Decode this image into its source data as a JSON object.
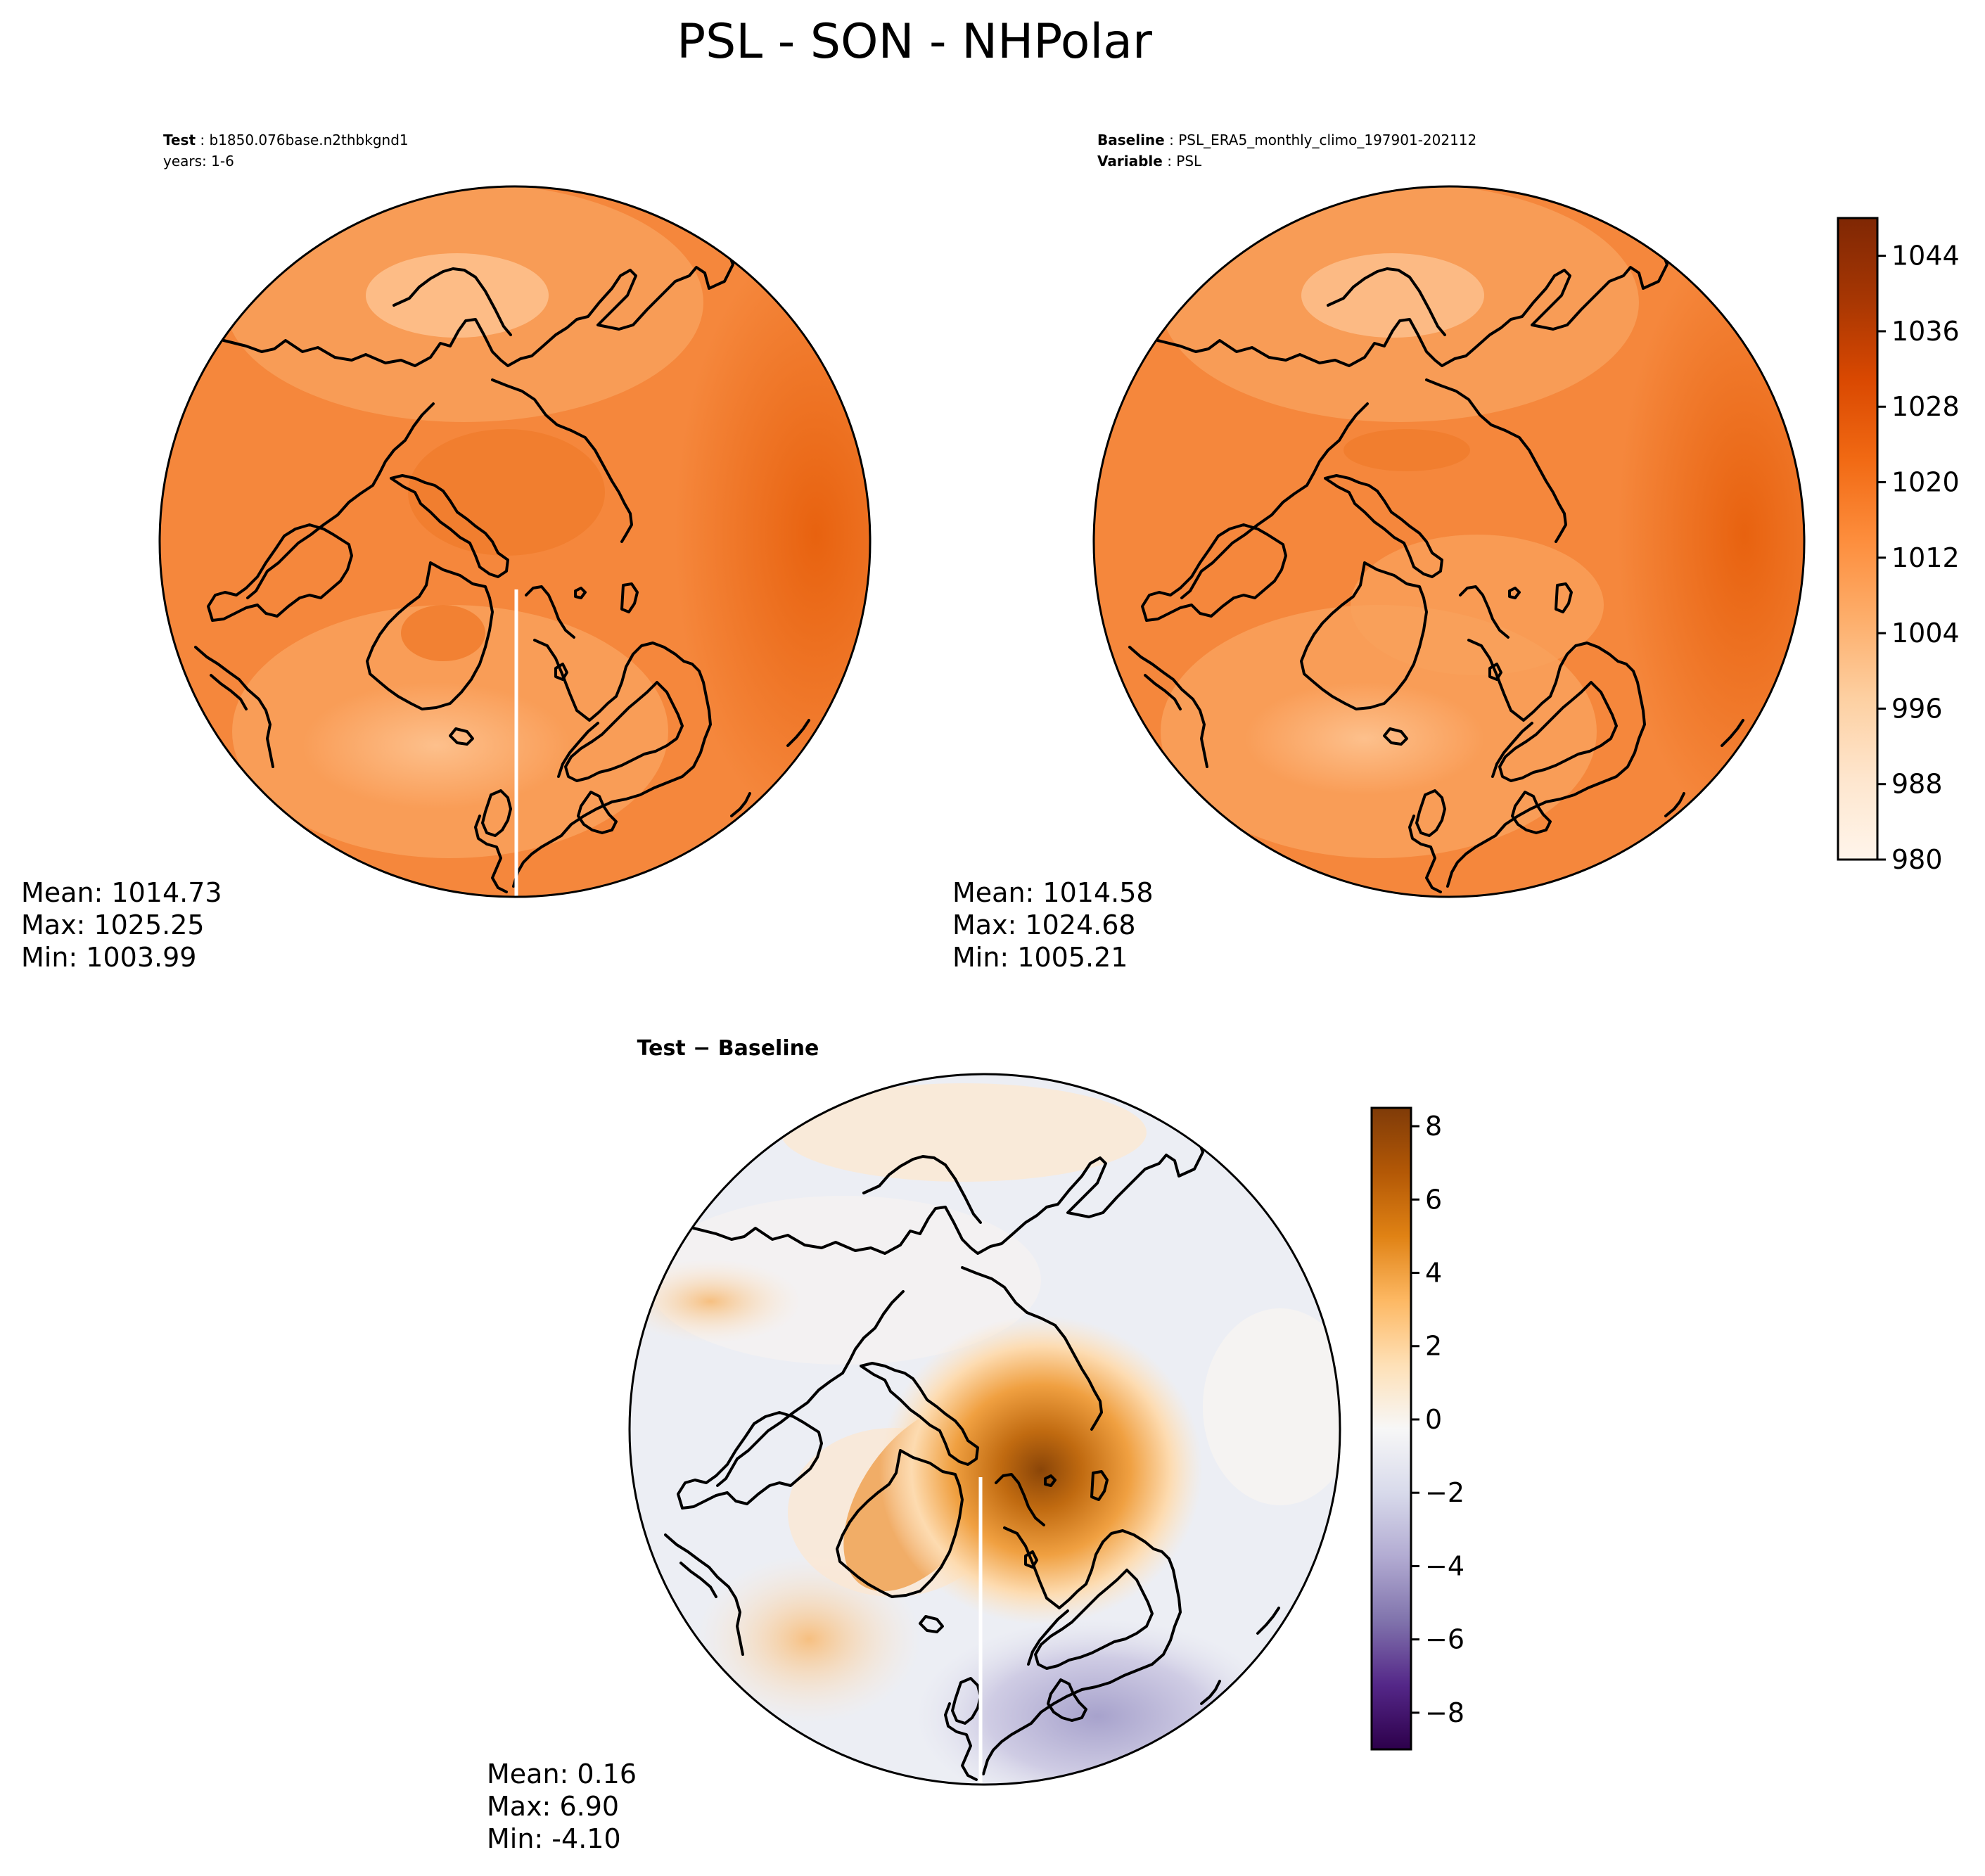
{
  "figure": {
    "title": "PSL - SON - NHPolar"
  },
  "panels": {
    "test": {
      "label_key": "Test",
      "label_value": "b1850.076base.n2thbkgnd1",
      "years": "years: 1-6",
      "stats": {
        "mean": "Mean: 1014.73",
        "max": "Max: 1025.25",
        "min": "Min: 1003.99"
      }
    },
    "baseline": {
      "label_key": "Baseline",
      "label_value": "PSL_ERA5_monthly_climo_197901-202112",
      "variable_key": "Variable",
      "variable_value": "PSL",
      "stats": {
        "mean": "Mean: 1014.58",
        "max": "Max: 1024.68",
        "min": "Min: 1005.21"
      }
    },
    "diff": {
      "title": "Test − Baseline",
      "stats": {
        "mean": "Mean:  0.16",
        "max": "Max:  6.90",
        "min": "Min: -4.10"
      }
    }
  },
  "colors": {
    "orange_scale": [
      "#fff5eb",
      "#fee6ce",
      "#fdd0a2",
      "#fdae6b",
      "#fd8d3c",
      "#f16913",
      "#d94801",
      "#a63603",
      "#7f2704"
    ],
    "puor_scale": [
      "#2d004b",
      "#542788",
      "#8073ac",
      "#b2abd2",
      "#d8daeb",
      "#f7f7f7",
      "#fee0b6",
      "#fdb863",
      "#e08214",
      "#b35806",
      "#7f3b08"
    ],
    "test_base": "#f5873c",
    "baseline_base": "#f5873c",
    "diff_base": "#eceef4"
  },
  "chart_data": [
    {
      "type": "heatmap",
      "name": "Test",
      "projection": "North Polar Stereographic",
      "variable": "PSL",
      "colorbar": {
        "ticks": [
          980,
          988,
          996,
          1004,
          1012,
          1020,
          1028,
          1036,
          1044
        ],
        "range": [
          980,
          1048
        ]
      },
      "stats": {
        "mean": 1014.73,
        "max": 1025.25,
        "min": 1003.99
      }
    },
    {
      "type": "heatmap",
      "name": "Baseline",
      "projection": "North Polar Stereographic",
      "variable": "PSL",
      "colorbar": {
        "ticks": [
          980,
          988,
          996,
          1004,
          1012,
          1020,
          1028,
          1036,
          1044
        ],
        "tick_labels": [
          "980",
          "988",
          "996",
          "1004",
          "1012",
          "1020",
          "1028",
          "1036",
          "1044"
        ],
        "range": [
          980,
          1048
        ]
      },
      "stats": {
        "mean": 1014.58,
        "max": 1024.68,
        "min": 1005.21
      }
    },
    {
      "type": "heatmap",
      "name": "Test − Baseline",
      "projection": "North Polar Stereographic",
      "variable": "PSL difference",
      "colorbar": {
        "ticks": [
          -8,
          -6,
          -4,
          -2,
          0,
          2,
          4,
          6,
          8
        ],
        "tick_labels": [
          "−8",
          "−6",
          "−4",
          "−2",
          "0",
          "2",
          "4",
          "6",
          "8"
        ],
        "range": [
          -9,
          8.5
        ]
      },
      "stats": {
        "mean": 0.16,
        "max": 6.9,
        "min": -4.1
      }
    }
  ]
}
